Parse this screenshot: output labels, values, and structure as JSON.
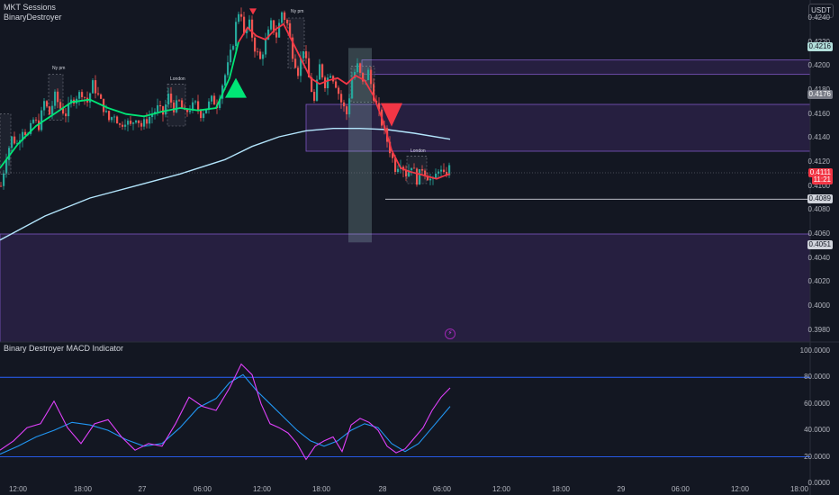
{
  "header": {
    "indicator_1": "MKT Sessions",
    "indicator_2": "BinaryDestroyer",
    "currency": "USDT"
  },
  "macd_panel": {
    "title": "Binary Destroyer MACD Indicator"
  },
  "colors": {
    "background": "#131722",
    "bull_candle": "#26a69a",
    "bear_candle": "#ef5350",
    "trend_up": "#00e676",
    "trend_down": "#f23645",
    "ma_line": "#b3e5fc",
    "zone_fill": "#2a2145",
    "zone_border": "#7e57c2",
    "macd_fast": "#e040fb",
    "macd_slow": "#2196f3"
  },
  "price_axis": {
    "ticks": [
      "0.4240",
      "0.4220",
      "0.4200",
      "0.4180",
      "0.4160",
      "0.4140",
      "0.4120",
      "0.4100",
      "0.4080",
      "0.4060",
      "0.4040",
      "0.4020",
      "0.4000",
      "0.3980"
    ],
    "labels": [
      {
        "name": "zone-top",
        "text": "0.4216",
        "value": 0.4216,
        "bg": "#b2dfdb",
        "fg": "#131722"
      },
      {
        "name": "zone-mid",
        "text": "0.4176",
        "value": 0.4176,
        "bg": "#787b86",
        "fg": "#ffffff"
      },
      {
        "name": "current-price",
        "text": "0.4111",
        "value": 0.4111,
        "bg": "#f23645",
        "fg": "#ffffff"
      },
      {
        "name": "countdown",
        "text": "11:21",
        "value": 0.4105,
        "bg": "#f23645",
        "fg": "#ffffff"
      },
      {
        "name": "low-line",
        "text": "0.4089",
        "value": 0.4089,
        "bg": "#d1d4dc",
        "fg": "#131722"
      },
      {
        "name": "zone-bottom",
        "text": "0.4051",
        "value": 0.4051,
        "bg": "#d1d4dc",
        "fg": "#131722"
      }
    ]
  },
  "macd_axis": {
    "ticks": [
      "100.0000",
      "80.0000",
      "60.0000",
      "40.0000",
      "20.0000",
      "0.0000"
    ]
  },
  "time_axis": {
    "ticks": [
      "12:00",
      "18:00",
      "27",
      "06:00",
      "12:00",
      "18:00",
      "28",
      "06:00",
      "12:00",
      "18:00",
      "29",
      "06:00",
      "12:00",
      "18:00"
    ]
  },
  "sessions": [
    {
      "name": "ny-am-1",
      "label": "Ny pm"
    },
    {
      "name": "london-1",
      "label": "London"
    },
    {
      "name": "ny-am-2",
      "label": "Ny pm"
    },
    {
      "name": "london-2",
      "label": "London"
    }
  ],
  "chart_data": {
    "type": "line",
    "title": "",
    "x_unit": "bars",
    "ylim": [
      0.397,
      0.4255
    ],
    "price_path": [
      [
        0,
        0.41
      ],
      [
        6,
        0.4125
      ],
      [
        12,
        0.414
      ],
      [
        18,
        0.4135
      ],
      [
        24,
        0.4148
      ],
      [
        30,
        0.4142
      ],
      [
        36,
        0.4155
      ],
      [
        42,
        0.415
      ],
      [
        48,
        0.417
      ],
      [
        54,
        0.416
      ],
      [
        60,
        0.4175
      ],
      [
        66,
        0.4165
      ],
      [
        72,
        0.416
      ],
      [
        78,
        0.417
      ],
      [
        84,
        0.4175
      ],
      [
        90,
        0.4178
      ],
      [
        96,
        0.417
      ],
      [
        102,
        0.4185
      ],
      [
        108,
        0.4175
      ],
      [
        114,
        0.4165
      ],
      [
        120,
        0.4155
      ],
      [
        126,
        0.416
      ],
      [
        132,
        0.415
      ],
      [
        138,
        0.4155
      ],
      [
        144,
        0.415
      ],
      [
        150,
        0.4158
      ],
      [
        156,
        0.415
      ],
      [
        162,
        0.4155
      ],
      [
        168,
        0.416
      ],
      [
        174,
        0.4165
      ],
      [
        180,
        0.416
      ],
      [
        186,
        0.4175
      ],
      [
        192,
        0.4165
      ],
      [
        198,
        0.417
      ],
      [
        204,
        0.416
      ],
      [
        210,
        0.4165
      ],
      [
        216,
        0.4168
      ],
      [
        222,
        0.416
      ],
      [
        228,
        0.4165
      ],
      [
        234,
        0.4172
      ],
      [
        240,
        0.4168
      ],
      [
        246,
        0.4185
      ],
      [
        252,
        0.42
      ],
      [
        258,
        0.422
      ],
      [
        262,
        0.424
      ],
      [
        266,
        0.425
      ],
      [
        270,
        0.4225
      ],
      [
        276,
        0.4235
      ],
      [
        282,
        0.4215
      ],
      [
        288,
        0.4205
      ],
      [
        294,
        0.422
      ],
      [
        300,
        0.4235
      ],
      [
        306,
        0.4225
      ],
      [
        312,
        0.4245
      ],
      [
        318,
        0.4235
      ],
      [
        324,
        0.421
      ],
      [
        330,
        0.4195
      ],
      [
        336,
        0.4215
      ],
      [
        342,
        0.419
      ],
      [
        348,
        0.417
      ],
      [
        354,
        0.42
      ],
      [
        360,
        0.4185
      ],
      [
        366,
        0.4195
      ],
      [
        372,
        0.4185
      ],
      [
        378,
        0.417
      ],
      [
        384,
        0.416
      ],
      [
        390,
        0.419
      ],
      [
        396,
        0.42
      ],
      [
        402,
        0.4185
      ],
      [
        408,
        0.4195
      ],
      [
        414,
        0.4175
      ],
      [
        420,
        0.416
      ],
      [
        426,
        0.4145
      ],
      [
        432,
        0.413
      ],
      [
        438,
        0.4115
      ],
      [
        444,
        0.412
      ],
      [
        450,
        0.411
      ],
      [
        456,
        0.4118
      ],
      [
        462,
        0.4105
      ],
      [
        468,
        0.4115
      ],
      [
        474,
        0.4108
      ],
      [
        480,
        0.4103
      ],
      [
        486,
        0.4115
      ],
      [
        492,
        0.4108
      ],
      [
        498,
        0.4115
      ]
    ],
    "trend_line": {
      "x": [
        0,
        20,
        40,
        60,
        80,
        100,
        120,
        140,
        160,
        180,
        200,
        220,
        240,
        255,
        265,
        275,
        285,
        295,
        305,
        315,
        325,
        335,
        345,
        355,
        365,
        375,
        385,
        395,
        405,
        415,
        425,
        435,
        445,
        455,
        465,
        475,
        485,
        495,
        500
      ],
      "y": [
        0.4115,
        0.4135,
        0.415,
        0.416,
        0.417,
        0.4172,
        0.4165,
        0.416,
        0.4158,
        0.4162,
        0.4165,
        0.4163,
        0.4165,
        0.419,
        0.422,
        0.4232,
        0.4225,
        0.4222,
        0.423,
        0.4235,
        0.422,
        0.4205,
        0.419,
        0.4185,
        0.4188,
        0.419,
        0.4185,
        0.4192,
        0.4188,
        0.4175,
        0.4155,
        0.413,
        0.4115,
        0.4112,
        0.411,
        0.4108,
        0.4106,
        0.4109,
        0.411
      ],
      "down_from": 270
    },
    "ma_line": {
      "x": [
        0,
        50,
        100,
        150,
        200,
        250,
        280,
        310,
        340,
        370,
        400,
        430,
        460,
        500
      ],
      "y": [
        0.4055,
        0.4075,
        0.409,
        0.41,
        0.411,
        0.4122,
        0.4133,
        0.4141,
        0.4146,
        0.4148,
        0.4148,
        0.4147,
        0.4144,
        0.4139
      ]
    },
    "signals": [
      {
        "name": "buy-signal",
        "type": "buy",
        "x": 262,
        "y": 0.4178
      },
      {
        "name": "sell-signal-1",
        "type": "sell",
        "x": 281,
        "y": 0.4245
      },
      {
        "name": "sell-signal-2",
        "type": "sell",
        "x": 435,
        "y": 0.416
      }
    ],
    "zones": [
      {
        "name": "supply-zone-top",
        "x0": 402,
        "y_low": 0.4193,
        "y_high": 0.4205
      },
      {
        "name": "supply-zone-mid",
        "x0": 340,
        "y_low": 0.4129,
        "y_high": 0.4168
      },
      {
        "name": "demand-zone-bottom",
        "x0": 0,
        "y_low": 0.397,
        "y_high": 0.406
      }
    ],
    "low_line": {
      "x0": 428,
      "y": 0.4089
    },
    "session_boxes": [
      {
        "name": "session-box-1",
        "x0": 0,
        "x1": 12,
        "y_low": 0.411,
        "y_high": 0.416
      },
      {
        "name": "session-box-2",
        "x0": 54,
        "x1": 70,
        "y_low": 0.4155,
        "y_high": 0.4193
      },
      {
        "name": "session-box-3",
        "x0": 186,
        "x1": 206,
        "y_low": 0.415,
        "y_high": 0.4185
      },
      {
        "name": "session-box-4",
        "x0": 320,
        "x1": 338,
        "y_low": 0.4198,
        "y_high": 0.424
      },
      {
        "name": "session-box-5",
        "x0": 390,
        "x1": 416,
        "y_low": 0.417,
        "y_high": 0.42
      },
      {
        "name": "session-box-6",
        "x0": 452,
        "x1": 474,
        "y_low": 0.4102,
        "y_high": 0.4125
      }
    ],
    "highlight": {
      "x0": 387,
      "x1": 413,
      "y_low": 0.4053,
      "y_high": 0.4215
    },
    "macd": {
      "ylim": [
        0,
        100
      ],
      "levels": [
        80,
        20
      ],
      "fast": {
        "x": [
          0,
          15,
          30,
          45,
          60,
          75,
          90,
          105,
          120,
          135,
          150,
          165,
          180,
          195,
          210,
          225,
          240,
          255,
          268,
          280,
          290,
          300,
          310,
          320,
          330,
          340,
          350,
          360,
          370,
          380,
          390,
          400,
          410,
          420,
          430,
          440,
          450,
          460,
          470,
          480,
          490,
          500
        ],
        "y": [
          25,
          32,
          42,
          45,
          62,
          42,
          30,
          45,
          48,
          35,
          25,
          30,
          28,
          45,
          65,
          58,
          55,
          72,
          90,
          82,
          60,
          45,
          42,
          38,
          30,
          18,
          28,
          32,
          35,
          24,
          44,
          49,
          46,
          40,
          28,
          23,
          26,
          34,
          42,
          55,
          65,
          72
        ]
      },
      "slow": {
        "x": [
          0,
          20,
          40,
          60,
          80,
          100,
          120,
          140,
          160,
          180,
          200,
          220,
          240,
          255,
          270,
          285,
          300,
          315,
          330,
          345,
          360,
          375,
          390,
          405,
          420,
          435,
          450,
          465,
          480,
          500
        ],
        "y": [
          22,
          28,
          35,
          40,
          46,
          44,
          40,
          33,
          28,
          30,
          42,
          57,
          64,
          76,
          82,
          70,
          60,
          50,
          40,
          32,
          28,
          32,
          40,
          45,
          42,
          30,
          24,
          30,
          42,
          58
        ]
      }
    }
  }
}
